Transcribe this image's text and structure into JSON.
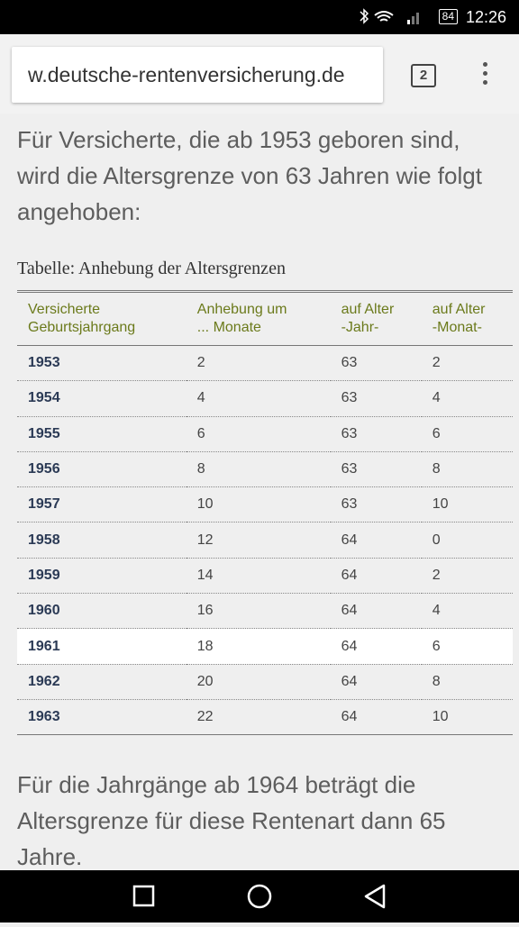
{
  "status_bar": {
    "battery": "84",
    "time": "12:26"
  },
  "url_bar": {
    "url": "w.deutsche-rentenversicherung.de",
    "tab_count": "2"
  },
  "content": {
    "intro": "Für Versicherte, die ab 1953 geboren sind, wird die Altersgrenze von 63 Jahren wie folgt angehoben:",
    "table": {
      "caption": "Tabelle: Anhebung der Altersgrenzen",
      "headers": [
        [
          "Versicherte",
          "Geburtsjahrgang"
        ],
        [
          "Anhebung um",
          "... Monate"
        ],
        [
          "auf Alter",
          "-Jahr-"
        ],
        [
          "auf Alter",
          "-Monat-"
        ]
      ],
      "rows": [
        [
          "1953",
          "2",
          "63",
          "2"
        ],
        [
          "1954",
          "4",
          "63",
          "4"
        ],
        [
          "1955",
          "6",
          "63",
          "6"
        ],
        [
          "1956",
          "8",
          "63",
          "8"
        ],
        [
          "1957",
          "10",
          "63",
          "10"
        ],
        [
          "1958",
          "12",
          "64",
          "0"
        ],
        [
          "1959",
          "14",
          "64",
          "2"
        ],
        [
          "1960",
          "16",
          "64",
          "4"
        ],
        [
          "1961",
          "18",
          "64",
          "6"
        ],
        [
          "1962",
          "20",
          "64",
          "8"
        ],
        [
          "1963",
          "22",
          "64",
          "10"
        ]
      ]
    },
    "outro": "Für die Jahrgänge ab 1964 beträgt die Altersgrenze für diese Rentenart dann 65 Jahre."
  }
}
